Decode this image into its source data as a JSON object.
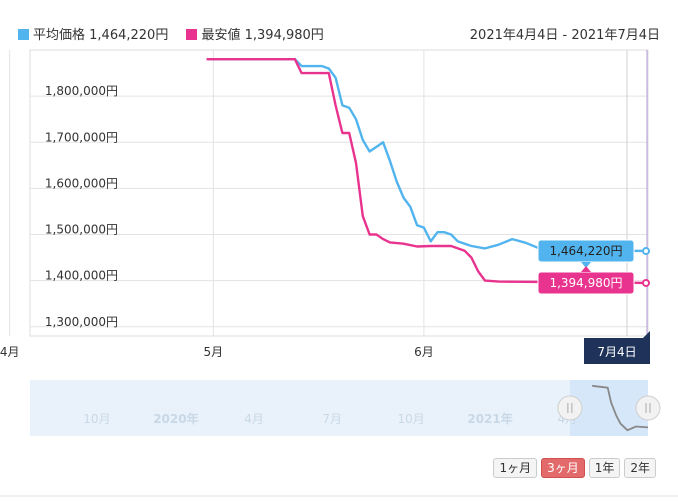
{
  "legend": {
    "avg_label": "平均価格",
    "avg_value": "1,464,220円",
    "min_label": "最安値",
    "min_value": "1,394,980円"
  },
  "date_range": "2021年4月4日 - 2021年7月4日",
  "colors": {
    "avg": "#52b4ee",
    "min": "#e8338f",
    "cursor_label_bg": "#1f3259",
    "navigator_bg": "#e9f2fb",
    "navigator_sel": "#d5e7f8",
    "navigator_line": "#888888"
  },
  "chart_data": {
    "type": "line",
    "x_start": "2021-04-04",
    "x_end": "2021-07-04",
    "y_ticks": [
      "1,300,000円",
      "1,400,000円",
      "1,500,000円",
      "1,600,000円",
      "1,700,000円",
      "1,800,000円"
    ],
    "y_tick_values": [
      1300000,
      1400000,
      1500000,
      1600000,
      1700000,
      1800000
    ],
    "ylim": [
      1280000,
      1900000
    ],
    "x_ticks": [
      {
        "date": "2021-04-01",
        "label": "4月"
      },
      {
        "date": "2021-05-01",
        "label": "5月"
      },
      {
        "date": "2021-06-01",
        "label": "6月"
      }
    ],
    "grid": true,
    "series": [
      {
        "name": "平均価格",
        "color": "#52b4ee",
        "points": [
          [
            "2021-04-30",
            1880000
          ],
          [
            "2021-05-13",
            1880000
          ],
          [
            "2021-05-14",
            1865000
          ],
          [
            "2021-05-17",
            1865000
          ],
          [
            "2021-05-18",
            1860000
          ],
          [
            "2021-05-19",
            1840000
          ],
          [
            "2021-05-20",
            1780000
          ],
          [
            "2021-05-21",
            1775000
          ],
          [
            "2021-05-22",
            1750000
          ],
          [
            "2021-05-23",
            1705000
          ],
          [
            "2021-05-24",
            1680000
          ],
          [
            "2021-05-25",
            1690000
          ],
          [
            "2021-05-26",
            1700000
          ],
          [
            "2021-05-27",
            1660000
          ],
          [
            "2021-05-28",
            1615000
          ],
          [
            "2021-05-29",
            1580000
          ],
          [
            "2021-05-30",
            1560000
          ],
          [
            "2021-05-31",
            1520000
          ],
          [
            "2021-06-01",
            1515000
          ],
          [
            "2021-06-02",
            1485000
          ],
          [
            "2021-06-03",
            1505000
          ],
          [
            "2021-06-04",
            1505000
          ],
          [
            "2021-06-05",
            1500000
          ],
          [
            "2021-06-06",
            1485000
          ],
          [
            "2021-06-08",
            1475000
          ],
          [
            "2021-06-10",
            1470000
          ],
          [
            "2021-06-12",
            1478000
          ],
          [
            "2021-06-14",
            1490000
          ],
          [
            "2021-06-16",
            1482000
          ],
          [
            "2021-06-18",
            1470000
          ],
          [
            "2021-06-20",
            1468000
          ],
          [
            "2021-06-23",
            1467000
          ],
          [
            "2021-06-26",
            1466000
          ],
          [
            "2021-06-30",
            1465000
          ],
          [
            "2021-07-04",
            1464220
          ]
        ]
      },
      {
        "name": "最安値",
        "color": "#e8338f",
        "points": [
          [
            "2021-04-30",
            1880000
          ],
          [
            "2021-05-13",
            1880000
          ],
          [
            "2021-05-14",
            1850000
          ],
          [
            "2021-05-17",
            1850000
          ],
          [
            "2021-05-18",
            1850000
          ],
          [
            "2021-05-19",
            1780000
          ],
          [
            "2021-05-20",
            1720000
          ],
          [
            "2021-05-21",
            1720000
          ],
          [
            "2021-05-22",
            1655000
          ],
          [
            "2021-05-23",
            1540000
          ],
          [
            "2021-05-24",
            1500000
          ],
          [
            "2021-05-25",
            1500000
          ],
          [
            "2021-05-26",
            1490000
          ],
          [
            "2021-05-27",
            1483000
          ],
          [
            "2021-05-29",
            1480000
          ],
          [
            "2021-05-31",
            1474000
          ],
          [
            "2021-06-02",
            1475000
          ],
          [
            "2021-06-05",
            1475000
          ],
          [
            "2021-06-07",
            1465000
          ],
          [
            "2021-06-08",
            1450000
          ],
          [
            "2021-06-09",
            1420000
          ],
          [
            "2021-06-10",
            1400000
          ],
          [
            "2021-06-12",
            1398000
          ],
          [
            "2021-06-20",
            1397000
          ],
          [
            "2021-06-28",
            1396000
          ],
          [
            "2021-07-04",
            1394980
          ]
        ]
      }
    ]
  },
  "tooltips": {
    "avg": "1,464,220円",
    "min": "1,394,980円"
  },
  "cursor_label": "7月4日",
  "navigator": {
    "labels": [
      "10月",
      "2020年",
      "4月",
      "7月",
      "10月",
      "2021年",
      "4月"
    ],
    "label_dates": [
      "2019-10-01",
      "2020-01-01",
      "2020-04-01",
      "2020-07-01",
      "2020-10-01",
      "2021-01-01",
      "2021-04-01"
    ],
    "start": "2019-07-15",
    "end": "2021-07-04",
    "selection_start": "2021-04-04",
    "points": [
      [
        "2021-04-30",
        1880000
      ],
      [
        "2021-05-18",
        1860000
      ],
      [
        "2021-05-22",
        1700000
      ],
      [
        "2021-05-28",
        1560000
      ],
      [
        "2021-06-02",
        1470000
      ],
      [
        "2021-06-10",
        1400000
      ],
      [
        "2021-06-20",
        1440000
      ],
      [
        "2021-07-04",
        1430000
      ]
    ]
  },
  "range_buttons": [
    {
      "label": "1ヶ月",
      "active": false
    },
    {
      "label": "3ヶ月",
      "active": true
    },
    {
      "label": "1年",
      "active": false
    },
    {
      "label": "2年",
      "active": false
    }
  ]
}
